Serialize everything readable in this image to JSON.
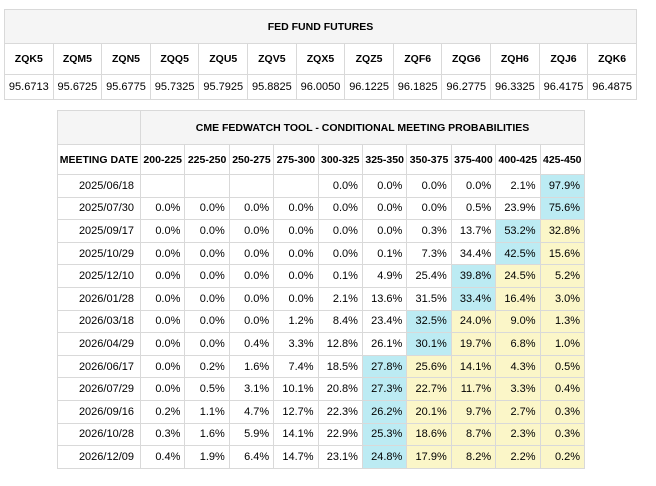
{
  "futures": {
    "title": "FED FUND FUTURES",
    "contracts": [
      {
        "code": "ZQK5",
        "price": "95.6713"
      },
      {
        "code": "ZQM5",
        "price": "95.6725"
      },
      {
        "code": "ZQN5",
        "price": "95.6775"
      },
      {
        "code": "ZQQ5",
        "price": "95.7325"
      },
      {
        "code": "ZQU5",
        "price": "95.7925"
      },
      {
        "code": "ZQV5",
        "price": "95.8825"
      },
      {
        "code": "ZQX5",
        "price": "96.0050"
      },
      {
        "code": "ZQZ5",
        "price": "96.1225"
      },
      {
        "code": "ZQF6",
        "price": "96.1825"
      },
      {
        "code": "ZQG6",
        "price": "96.2775"
      },
      {
        "code": "ZQH6",
        "price": "96.3325"
      },
      {
        "code": "ZQJ6",
        "price": "96.4175"
      },
      {
        "code": "ZQK6",
        "price": "96.4875"
      }
    ]
  },
  "fedwatch": {
    "title": "CME FEDWATCH TOOL - CONDITIONAL MEETING PROBABILITIES",
    "date_header": "MEETING DATE",
    "ranges": [
      "200-225",
      "225-250",
      "250-275",
      "275-300",
      "300-325",
      "325-350",
      "350-375",
      "375-400",
      "400-425",
      "425-450"
    ],
    "highlight_colors": {
      "max": "#bcebf3",
      "above_current": "#fbf6c8"
    },
    "rows": [
      {
        "date": "2025/06/18",
        "values": [
          "",
          "",
          "",
          "",
          "0.0%",
          "0.0%",
          "0.0%",
          "0.0%",
          "2.1%",
          "97.9%"
        ]
      },
      {
        "date": "2025/07/30",
        "values": [
          "0.0%",
          "0.0%",
          "0.0%",
          "0.0%",
          "0.0%",
          "0.0%",
          "0.0%",
          "0.5%",
          "23.9%",
          "75.6%"
        ]
      },
      {
        "date": "2025/09/17",
        "values": [
          "0.0%",
          "0.0%",
          "0.0%",
          "0.0%",
          "0.0%",
          "0.0%",
          "0.3%",
          "13.7%",
          "53.2%",
          "32.8%"
        ]
      },
      {
        "date": "2025/10/29",
        "values": [
          "0.0%",
          "0.0%",
          "0.0%",
          "0.0%",
          "0.0%",
          "0.1%",
          "7.3%",
          "34.4%",
          "42.5%",
          "15.6%"
        ]
      },
      {
        "date": "2025/12/10",
        "values": [
          "0.0%",
          "0.0%",
          "0.0%",
          "0.0%",
          "0.1%",
          "4.9%",
          "25.4%",
          "39.8%",
          "24.5%",
          "5.2%"
        ]
      },
      {
        "date": "2026/01/28",
        "values": [
          "0.0%",
          "0.0%",
          "0.0%",
          "0.0%",
          "2.1%",
          "13.6%",
          "31.5%",
          "33.4%",
          "16.4%",
          "3.0%"
        ]
      },
      {
        "date": "2026/03/18",
        "values": [
          "0.0%",
          "0.0%",
          "0.0%",
          "1.2%",
          "8.4%",
          "23.4%",
          "32.5%",
          "24.0%",
          "9.0%",
          "1.3%"
        ]
      },
      {
        "date": "2026/04/29",
        "values": [
          "0.0%",
          "0.0%",
          "0.4%",
          "3.3%",
          "12.8%",
          "26.1%",
          "30.1%",
          "19.7%",
          "6.8%",
          "1.0%"
        ]
      },
      {
        "date": "2026/06/17",
        "values": [
          "0.0%",
          "0.2%",
          "1.6%",
          "7.4%",
          "18.5%",
          "27.8%",
          "25.6%",
          "14.1%",
          "4.3%",
          "0.5%"
        ]
      },
      {
        "date": "2026/07/29",
        "values": [
          "0.0%",
          "0.5%",
          "3.1%",
          "10.1%",
          "20.8%",
          "27.3%",
          "22.7%",
          "11.7%",
          "3.3%",
          "0.4%"
        ]
      },
      {
        "date": "2026/09/16",
        "values": [
          "0.2%",
          "1.1%",
          "4.7%",
          "12.7%",
          "22.3%",
          "26.2%",
          "20.1%",
          "9.7%",
          "2.7%",
          "0.3%"
        ]
      },
      {
        "date": "2026/10/28",
        "values": [
          "0.3%",
          "1.6%",
          "5.9%",
          "14.1%",
          "22.9%",
          "25.3%",
          "18.6%",
          "8.7%",
          "2.3%",
          "0.3%"
        ]
      },
      {
        "date": "2026/12/09",
        "values": [
          "0.4%",
          "1.9%",
          "6.4%",
          "14.7%",
          "23.1%",
          "24.8%",
          "17.9%",
          "8.2%",
          "2.2%",
          "0.2%"
        ]
      }
    ],
    "cell_styles": [
      [
        "",
        "",
        "",
        "",
        "",
        "",
        "",
        "",
        "",
        "cyan"
      ],
      [
        "",
        "",
        "",
        "",
        "",
        "",
        "",
        "",
        "",
        "cyan"
      ],
      [
        "",
        "",
        "",
        "",
        "",
        "",
        "",
        "",
        "cyan",
        "yellow"
      ],
      [
        "",
        "",
        "",
        "",
        "",
        "",
        "",
        "",
        "cyan",
        "yellow"
      ],
      [
        "",
        "",
        "",
        "",
        "",
        "",
        "",
        "cyan",
        "yellow",
        "yellow"
      ],
      [
        "",
        "",
        "",
        "",
        "",
        "",
        "",
        "cyan",
        "yellow",
        "yellow"
      ],
      [
        "",
        "",
        "",
        "",
        "",
        "",
        "cyan",
        "yellow",
        "yellow",
        "yellow"
      ],
      [
        "",
        "",
        "",
        "",
        "",
        "",
        "cyan",
        "yellow",
        "yellow",
        "yellow"
      ],
      [
        "",
        "",
        "",
        "",
        "",
        "cyan",
        "yellow",
        "yellow",
        "yellow",
        "yellow"
      ],
      [
        "",
        "",
        "",
        "",
        "",
        "cyan",
        "yellow",
        "yellow",
        "yellow",
        "yellow"
      ],
      [
        "",
        "",
        "",
        "",
        "",
        "cyan",
        "yellow",
        "yellow",
        "yellow",
        "yellow"
      ],
      [
        "",
        "",
        "",
        "",
        "",
        "cyan",
        "yellow",
        "yellow",
        "yellow",
        "yellow"
      ],
      [
        "",
        "",
        "",
        "",
        "",
        "cyan",
        "yellow",
        "yellow",
        "yellow",
        "yellow"
      ]
    ]
  }
}
